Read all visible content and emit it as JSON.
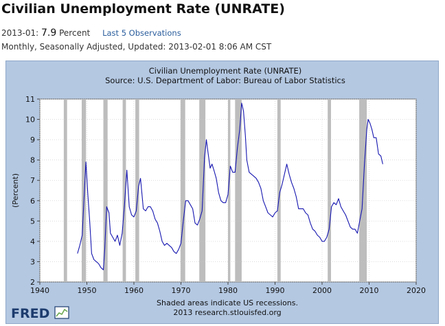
{
  "header": {
    "title": "Civilian Unemployment Rate (UNRATE)",
    "latest_date": "2013-01:",
    "latest_value": "7.9",
    "latest_unit": "Percent",
    "observations_link": "Last 5 Observations",
    "meta": "Monthly, Seasonally Adjusted, Updated: 2013-02-01 8:06 AM CST"
  },
  "logo": {
    "text": "FRED"
  },
  "chart_data": {
    "type": "line",
    "title": "Civilian Unemployment Rate (UNRATE)",
    "subtitle": "Source: U.S. Department of Labor: Bureau of Labor Statistics",
    "ylabel": "(Percent)",
    "xlabel": "",
    "footnote": "Shaded areas indicate US recessions.",
    "credit": "2013 research.stlouisfed.org",
    "xlim": [
      1940,
      2020
    ],
    "ylim": [
      2,
      11
    ],
    "x_ticks": [
      1940,
      1950,
      1960,
      1970,
      1980,
      1990,
      2000,
      2010,
      2020
    ],
    "y_ticks": [
      2,
      3,
      4,
      5,
      6,
      7,
      8,
      9,
      10,
      11
    ],
    "grid": true,
    "line_color": "#1515b0",
    "recession_color": "#bdbdbd",
    "plot_background": "#ffffff",
    "recessions": [
      [
        1945.1,
        1945.8
      ],
      [
        1948.9,
        1949.8
      ],
      [
        1953.5,
        1954.4
      ],
      [
        1957.6,
        1958.3
      ],
      [
        1960.3,
        1961.1
      ],
      [
        1969.9,
        1970.9
      ],
      [
        1973.9,
        1975.2
      ],
      [
        1980.0,
        1980.5
      ],
      [
        1981.5,
        1982.9
      ],
      [
        1990.5,
        1991.2
      ],
      [
        2001.2,
        2001.9
      ],
      [
        2007.9,
        2009.5
      ]
    ],
    "series": [
      {
        "x": [
          1948.0,
          1948.5,
          1949.0,
          1949.5,
          1949.8,
          1950.2,
          1950.6,
          1951.0,
          1951.5,
          1952.0,
          1952.5,
          1953.0,
          1953.5,
          1953.8,
          1954.2,
          1954.7,
          1955.0,
          1955.5,
          1956.0,
          1956.5,
          1957.0,
          1957.5,
          1958.0,
          1958.5,
          1959.0,
          1959.5,
          1960.0,
          1960.5,
          1961.0,
          1961.4,
          1962.0,
          1962.5,
          1963.0,
          1963.5,
          1964.0,
          1964.5,
          1965.0,
          1965.5,
          1966.0,
          1966.5,
          1967.0,
          1967.5,
          1968.0,
          1968.5,
          1969.0,
          1969.5,
          1970.0,
          1970.5,
          1971.0,
          1971.5,
          1972.0,
          1972.5,
          1973.0,
          1973.5,
          1974.0,
          1974.5,
          1975.0,
          1975.4,
          1975.8,
          1976.2,
          1976.6,
          1977.0,
          1977.5,
          1978.0,
          1978.5,
          1979.0,
          1979.5,
          1980.0,
          1980.5,
          1981.0,
          1981.5,
          1982.0,
          1982.5,
          1982.9,
          1983.3,
          1983.7,
          1984.0,
          1984.5,
          1985.0,
          1985.5,
          1986.0,
          1986.5,
          1987.0,
          1987.5,
          1988.0,
          1988.5,
          1989.0,
          1989.5,
          1990.0,
          1990.5,
          1991.0,
          1991.5,
          1992.0,
          1992.5,
          1993.0,
          1993.5,
          1994.0,
          1994.5,
          1995.0,
          1995.5,
          1996.0,
          1996.5,
          1997.0,
          1997.5,
          1998.0,
          1998.5,
          1999.0,
          1999.5,
          2000.0,
          2000.5,
          2001.0,
          2001.5,
          2002.0,
          2002.5,
          2003.0,
          2003.5,
          2004.0,
          2004.5,
          2005.0,
          2005.5,
          2006.0,
          2006.5,
          2007.0,
          2007.5,
          2008.0,
          2008.5,
          2009.0,
          2009.5,
          2009.8,
          2010.2,
          2010.6,
          2011.0,
          2011.5,
          2012.0,
          2012.5,
          2012.9
        ],
        "values": [
          3.4,
          3.8,
          4.3,
          6.6,
          7.9,
          6.3,
          5.0,
          3.4,
          3.1,
          3.0,
          2.9,
          2.7,
          2.6,
          3.6,
          5.7,
          5.4,
          4.4,
          4.2,
          4.0,
          4.3,
          3.8,
          4.4,
          5.8,
          7.5,
          5.7,
          5.3,
          5.2,
          5.5,
          6.7,
          7.1,
          5.6,
          5.5,
          5.7,
          5.7,
          5.5,
          5.1,
          4.9,
          4.5,
          4.0,
          3.8,
          3.9,
          3.8,
          3.7,
          3.5,
          3.4,
          3.6,
          3.9,
          5.0,
          6.0,
          6.0,
          5.8,
          5.6,
          4.9,
          4.8,
          5.1,
          5.5,
          8.1,
          9.0,
          8.3,
          7.6,
          7.8,
          7.5,
          7.1,
          6.4,
          6.0,
          5.9,
          5.9,
          6.3,
          7.7,
          7.4,
          7.4,
          8.6,
          9.5,
          10.8,
          10.4,
          9.2,
          8.0,
          7.4,
          7.3,
          7.2,
          7.1,
          6.9,
          6.6,
          6.0,
          5.7,
          5.4,
          5.3,
          5.2,
          5.4,
          5.5,
          6.4,
          6.8,
          7.3,
          7.8,
          7.3,
          6.9,
          6.6,
          6.2,
          5.6,
          5.6,
          5.6,
          5.4,
          5.3,
          4.9,
          4.6,
          4.5,
          4.3,
          4.2,
          4.0,
          4.0,
          4.2,
          4.6,
          5.7,
          5.9,
          5.8,
          6.1,
          5.7,
          5.5,
          5.3,
          5.0,
          4.7,
          4.6,
          4.6,
          4.4,
          5.0,
          5.6,
          7.8,
          9.5,
          10.0,
          9.8,
          9.5,
          9.1,
          9.1,
          8.3,
          8.2,
          7.8
        ]
      }
    ]
  }
}
